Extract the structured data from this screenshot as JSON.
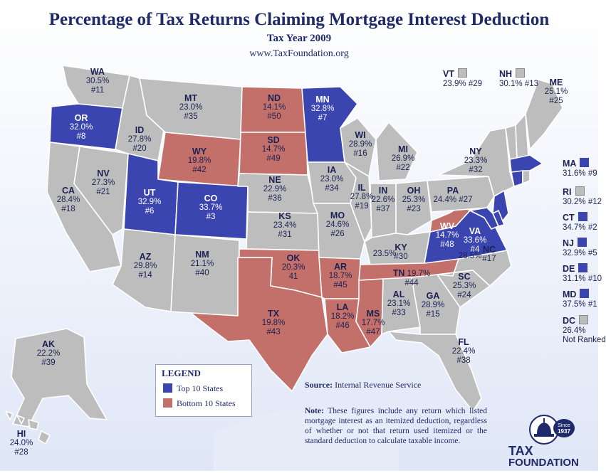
{
  "header": {
    "title": "Percentage of Tax Returns Claiming Mortgage Interest Deduction",
    "subtitle": "Tax Year 2009",
    "url": "www.TaxFoundation.org"
  },
  "colors": {
    "top10": "#3b45b0",
    "bottom10": "#c3706b",
    "other": "#bdbdbd",
    "text": "#1f2a6b"
  },
  "states": {
    "WA": {
      "abbr": "WA",
      "pct": "30.5%",
      "rank": "#11"
    },
    "OR": {
      "abbr": "OR",
      "pct": "32.0%",
      "rank": "#8"
    },
    "CA": {
      "abbr": "CA",
      "pct": "28.4%",
      "rank": "#18"
    },
    "NV": {
      "abbr": "NV",
      "pct": "27.3%",
      "rank": "#21"
    },
    "ID": {
      "abbr": "ID",
      "pct": "27.8%",
      "rank": "#20"
    },
    "MT": {
      "abbr": "MT",
      "pct": "23.0%",
      "rank": "#35"
    },
    "WY": {
      "abbr": "WY",
      "pct": "19.8%",
      "rank": "#42"
    },
    "UT": {
      "abbr": "UT",
      "pct": "32.9%",
      "rank": "#6"
    },
    "CO": {
      "abbr": "CO",
      "pct": "33.7%",
      "rank": "#3"
    },
    "AZ": {
      "abbr": "AZ",
      "pct": "29.8%",
      "rank": "#14"
    },
    "NM": {
      "abbr": "NM",
      "pct": "21.1%",
      "rank": "#40"
    },
    "ND": {
      "abbr": "ND",
      "pct": "14.1%",
      "rank": "#50"
    },
    "SD": {
      "abbr": "SD",
      "pct": "14.7%",
      "rank": "#49"
    },
    "NE": {
      "abbr": "NE",
      "pct": "22.9%",
      "rank": "#36"
    },
    "KS": {
      "abbr": "KS",
      "pct": "23.4%",
      "rank": "#31"
    },
    "OK": {
      "abbr": "OK",
      "pct": "20.3%",
      "rank": "41"
    },
    "TX": {
      "abbr": "TX",
      "pct": "19.8%",
      "rank": "#43"
    },
    "MN": {
      "abbr": "MN",
      "pct": "32.8%",
      "rank": "#7"
    },
    "IA": {
      "abbr": "IA",
      "pct": "23.0%",
      "rank": "#34"
    },
    "MO": {
      "abbr": "MO",
      "pct": "24.6%",
      "rank": "#26"
    },
    "AR": {
      "abbr": "AR",
      "pct": "18.7%",
      "rank": "#45"
    },
    "LA": {
      "abbr": "LA",
      "pct": "18.2%",
      "rank": "#46"
    },
    "WI": {
      "abbr": "WI",
      "pct": "28.9%",
      "rank": "#16"
    },
    "IL": {
      "abbr": "IL",
      "pct": "27.8%",
      "rank": "#19"
    },
    "MI": {
      "abbr": "MI",
      "pct": "26.9%",
      "rank": "#22"
    },
    "IN": {
      "abbr": "IN",
      "pct": "22.6%",
      "rank": "#37"
    },
    "OH": {
      "abbr": "OH",
      "pct": "25.3%",
      "rank": "#23"
    },
    "KY": {
      "abbr": "KY",
      "pct": "23.5%",
      "rank": "#30"
    },
    "TN": {
      "abbr": "TN",
      "pct": "19.7%",
      "rank": "#44"
    },
    "MS": {
      "abbr": "MS",
      "pct": "17.7%",
      "rank": "#47"
    },
    "AL": {
      "abbr": "AL",
      "pct": "23.1%",
      "rank": "#33"
    },
    "GA": {
      "abbr": "GA",
      "pct": "28.9%",
      "rank": "#15"
    },
    "FL": {
      "abbr": "FL",
      "pct": "22.4%",
      "rank": "#38"
    },
    "SC": {
      "abbr": "SC",
      "pct": "25.3%",
      "rank": "#24"
    },
    "NC": {
      "abbr": "NC",
      "pct": "28.5%",
      "rank": "#17"
    },
    "VA": {
      "abbr": "VA",
      "pct": "33.6%",
      "rank": "#4"
    },
    "WV": {
      "abbr": "WV",
      "pct": "14.7%",
      "rank": "#48"
    },
    "PA": {
      "abbr": "PA",
      "pct": "24.4%",
      "rank": "#27"
    },
    "NY": {
      "abbr": "NY",
      "pct": "23.3%",
      "rank": "#32"
    },
    "ME": {
      "abbr": "ME",
      "pct": "25.1%",
      "rank": "#25"
    },
    "AK": {
      "abbr": "AK",
      "pct": "22.2%",
      "rank": "#39"
    },
    "HI": {
      "abbr": "HI",
      "pct": "24.0%",
      "rank": "#28"
    },
    "VT": {
      "abbr": "VT",
      "pct": "23.9%",
      "rank": "#29"
    },
    "NH": {
      "abbr": "NH",
      "pct": "30.1%",
      "rank": "#13"
    },
    "MA": {
      "abbr": "MA",
      "pct": "31.6%",
      "rank": "#9"
    },
    "RI": {
      "abbr": "RI",
      "pct": "30.2%",
      "rank": "#12"
    },
    "CT": {
      "abbr": "CT",
      "pct": "34.7%",
      "rank": "#2"
    },
    "NJ": {
      "abbr": "NJ",
      "pct": "32.9%",
      "rank": "#5"
    },
    "DE": {
      "abbr": "DE",
      "pct": "31.1%",
      "rank": "#10"
    },
    "MD": {
      "abbr": "MD",
      "pct": "37.5%",
      "rank": "#1"
    },
    "DC": {
      "abbr": "DC",
      "pct": "26.4%",
      "rank": "Not Ranked"
    }
  },
  "legend": {
    "title": "LEGEND",
    "top": "Top 10 States",
    "bottom": "Bottom 10 States"
  },
  "source": {
    "label": "Source:",
    "text": "Internal Revenue Service"
  },
  "note": {
    "label": "Note:",
    "text": "These figures include any return which listed mortgage interest as an itemized deduction, regardless of whether or not that return used itemized or the standard deduction to calculate taxable income."
  },
  "logo": {
    "line1": "TAX",
    "line2": "FOUNDATION",
    "badge1": "Since",
    "badge2": "1937"
  }
}
